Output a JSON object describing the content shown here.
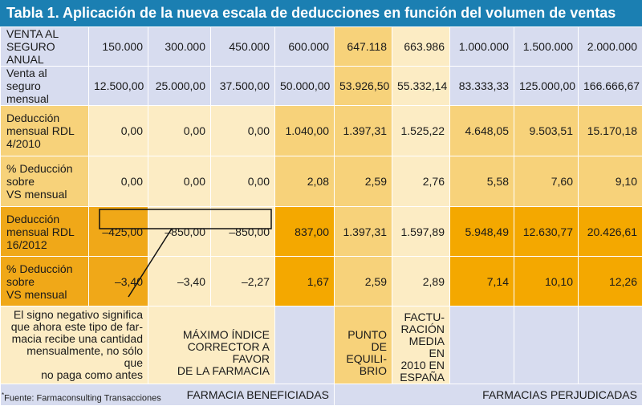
{
  "title": "Tabla 1. Aplicación de la nueva escala de deducciones en función del volumen de ventas",
  "table": {
    "rows": [
      {
        "label": [
          "VENTA AL",
          "SEGURO ANUAL"
        ],
        "values": [
          "150.000",
          "300.000",
          "450.000",
          "600.000",
          "647.118",
          "663.986",
          "1.000.000",
          "1.500.000",
          "2.000.000"
        ]
      },
      {
        "label": [
          "Venta al seguro",
          "mensual"
        ],
        "values": [
          "12.500,00",
          "25.000,00",
          "37.500,00",
          "50.000,00",
          "53.926,50",
          "55.332,14",
          "83.333,33",
          "125.000,00",
          "166.666,67"
        ]
      },
      {
        "label": [
          "Deducción",
          "mensual RDL",
          "4/2010"
        ],
        "values": [
          "0,00",
          "0,00",
          "0,00",
          "1.040,00",
          "1.397,31",
          "1.525,22",
          "4.648,05",
          "9.503,51",
          "15.170,18"
        ]
      },
      {
        "label": [
          "% Deducción",
          "sobre",
          "VS mensual"
        ],
        "values": [
          "0,00",
          "0,00",
          "0,00",
          "2,08",
          "2,59",
          "2,76",
          "5,58",
          "7,60",
          "9,10"
        ]
      },
      {
        "label": [
          "Deducción",
          "mensual RDL",
          "16/2012"
        ],
        "values": [
          "–425,00",
          "–850,00",
          "–850,00",
          "837,00",
          "1.397,31",
          "1.597,89",
          "5.948,49",
          "12.630,77",
          "20.426,61"
        ]
      },
      {
        "label": [
          "% Deducción",
          "sobre",
          "VS mensual"
        ],
        "values": [
          "–3,40",
          "–3,40",
          "–2,27",
          "1,67",
          "2,59",
          "2,89",
          "7,14",
          "10,10",
          "12,26"
        ]
      }
    ],
    "notes": {
      "sign_note": [
        "El signo negativo significa",
        "que ahora este tipo de far-",
        "macia recibe una cantidad",
        "mensualmente, no sólo que",
        "no paga como antes"
      ],
      "max_index": [
        "MÁXIMO ÍNDICE",
        "CORRECTOR A FAVOR",
        "DE LA FARMACIA"
      ],
      "equilibrium": [
        "PUNTO",
        "DE EQUILI-",
        "BRIO"
      ],
      "billing": [
        "FACTU-",
        "RACIÓN",
        "MEDIA EN",
        "2010 EN",
        "ESPAÑA"
      ]
    },
    "groups": {
      "benefited": "FARMACIA BENEFICIADAS",
      "harmed": "FARMACIAS PERJUDICADAS"
    }
  },
  "source": "Fuente: Farmaconsulting Transacciones"
}
